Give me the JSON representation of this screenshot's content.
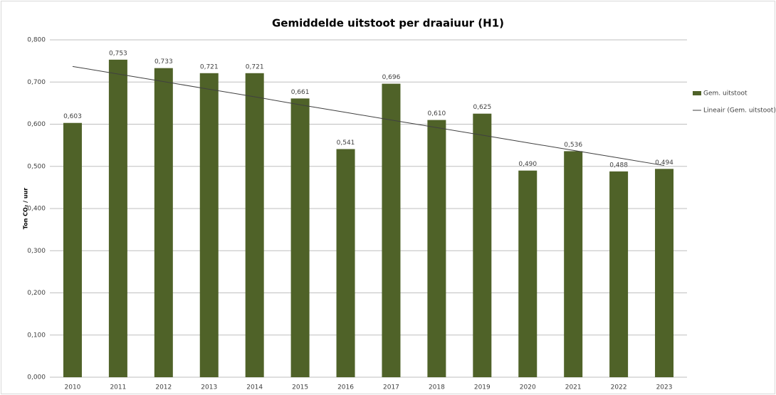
{
  "chart_data": {
    "type": "bar",
    "title": "Gemiddelde uitstoot per draaiuur (H1)",
    "y_label": "Ton CO₂ / uur",
    "categories": [
      "2010",
      "2011",
      "2012",
      "2013",
      "2014",
      "2015",
      "2016",
      "2017",
      "2018",
      "2019",
      "2020",
      "2021",
      "2022",
      "2023"
    ],
    "series": [
      {
        "name": "Gem. uitstoot",
        "type": "bar",
        "color": "#4f6228",
        "values": [
          0.603,
          0.753,
          0.733,
          0.721,
          0.721,
          0.661,
          0.541,
          0.696,
          0.61,
          0.625,
          0.49,
          0.536,
          0.488,
          0.494
        ],
        "value_labels": [
          "0,603",
          "0,753",
          "0,733",
          "0,721",
          "0,721",
          "0,661",
          "0,541",
          "0,696",
          "0,610",
          "0,625",
          "0,490",
          "0,536",
          "0,488",
          "0,494"
        ]
      },
      {
        "name": "Lineair (Gem. uitstoot)",
        "type": "line",
        "color": "#404040",
        "values": [
          0.737,
          0.719,
          0.701,
          0.683,
          0.665,
          0.646,
          0.628,
          0.61,
          0.592,
          0.574,
          0.556,
          0.538,
          0.52,
          0.502
        ]
      }
    ],
    "ylim": [
      0,
      0.8
    ],
    "yticks": [
      {
        "value": 0,
        "label": "0,000"
      },
      {
        "value": 0.1,
        "label": "0,100"
      },
      {
        "value": 0.2,
        "label": "0,200"
      },
      {
        "value": 0.3,
        "label": "0,300"
      },
      {
        "value": 0.4,
        "label": "0,400"
      },
      {
        "value": 0.5,
        "label": "0,500"
      },
      {
        "value": 0.6,
        "label": "0,600"
      },
      {
        "value": 0.7,
        "label": "0,700"
      },
      {
        "value": 0.8,
        "label": "0,800"
      }
    ],
    "grid": true,
    "legend": "right"
  }
}
